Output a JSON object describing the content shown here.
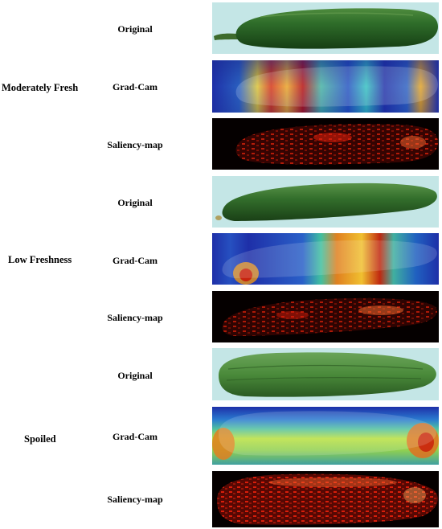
{
  "groups": [
    {
      "label": "Moderately Fresh",
      "rows": [
        {
          "label": "Original",
          "panel": "original-photo"
        },
        {
          "label": "Grad-Cam",
          "panel": "gradcam-heatmap"
        },
        {
          "label": "Saliency-map",
          "panel": "saliency-map"
        }
      ]
    },
    {
      "label": "Low Freshness",
      "rows": [
        {
          "label": "Original",
          "panel": "original-photo"
        },
        {
          "label": "Grad-Cam",
          "panel": "gradcam-heatmap"
        },
        {
          "label": "Saliency-map",
          "panel": "saliency-map"
        }
      ]
    },
    {
      "label": "Spoiled",
      "rows": [
        {
          "label": "Original",
          "panel": "original-photo"
        },
        {
          "label": "Grad-Cam",
          "panel": "gradcam-heatmap"
        },
        {
          "label": "Saliency-map",
          "panel": "saliency-map"
        }
      ]
    }
  ],
  "colors": {
    "photo_background": "#c4e6e6",
    "cucumber_green": "#2f6e2a",
    "heatmap_blue": "#1e2fa8",
    "heatmap_red": "#d41f12",
    "saliency_background": "#050000",
    "saliency_red": "#e4200c"
  }
}
